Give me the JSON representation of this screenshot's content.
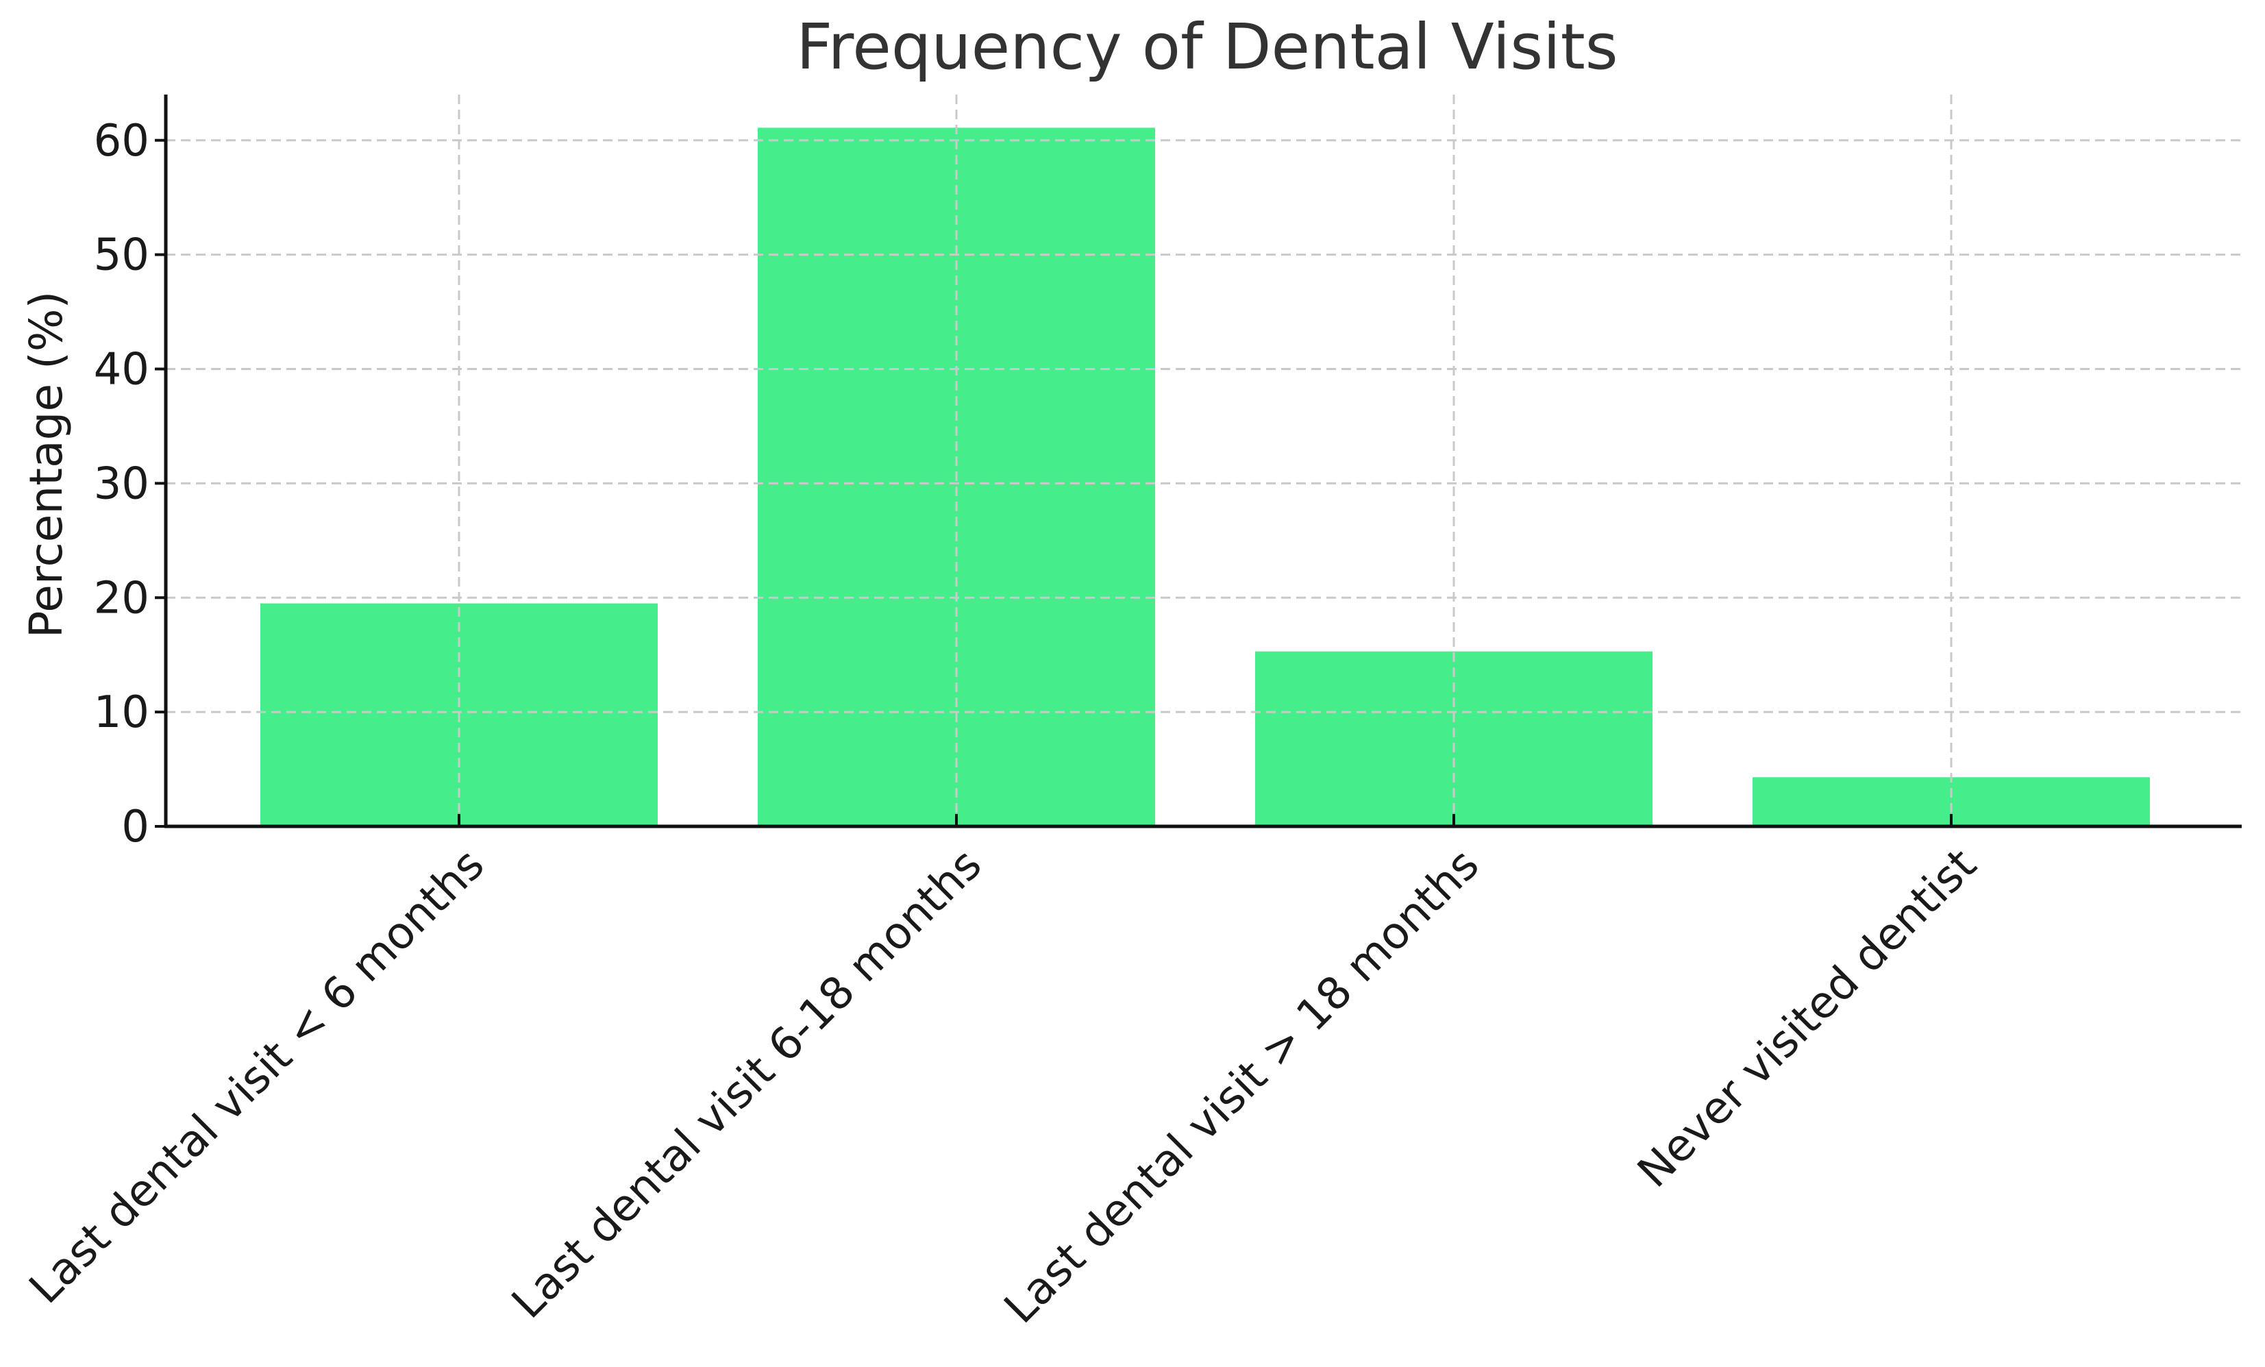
{
  "chart_data": {
    "type": "bar",
    "title": "Frequency of Dental Visits",
    "xlabel": "",
    "ylabel": "Percentage (%)",
    "categories": [
      "Last dental visit < 6 months",
      "Last dental visit 6-18 months",
      "Last dental visit > 18 months",
      "Never visited dentist"
    ],
    "values": [
      19.5,
      61.1,
      15.3,
      4.3
    ],
    "ylim": [
      0,
      64
    ],
    "yticks": [
      0,
      10,
      20,
      30,
      40,
      50,
      60
    ],
    "bar_color": "#45EE8B",
    "grid": true
  }
}
